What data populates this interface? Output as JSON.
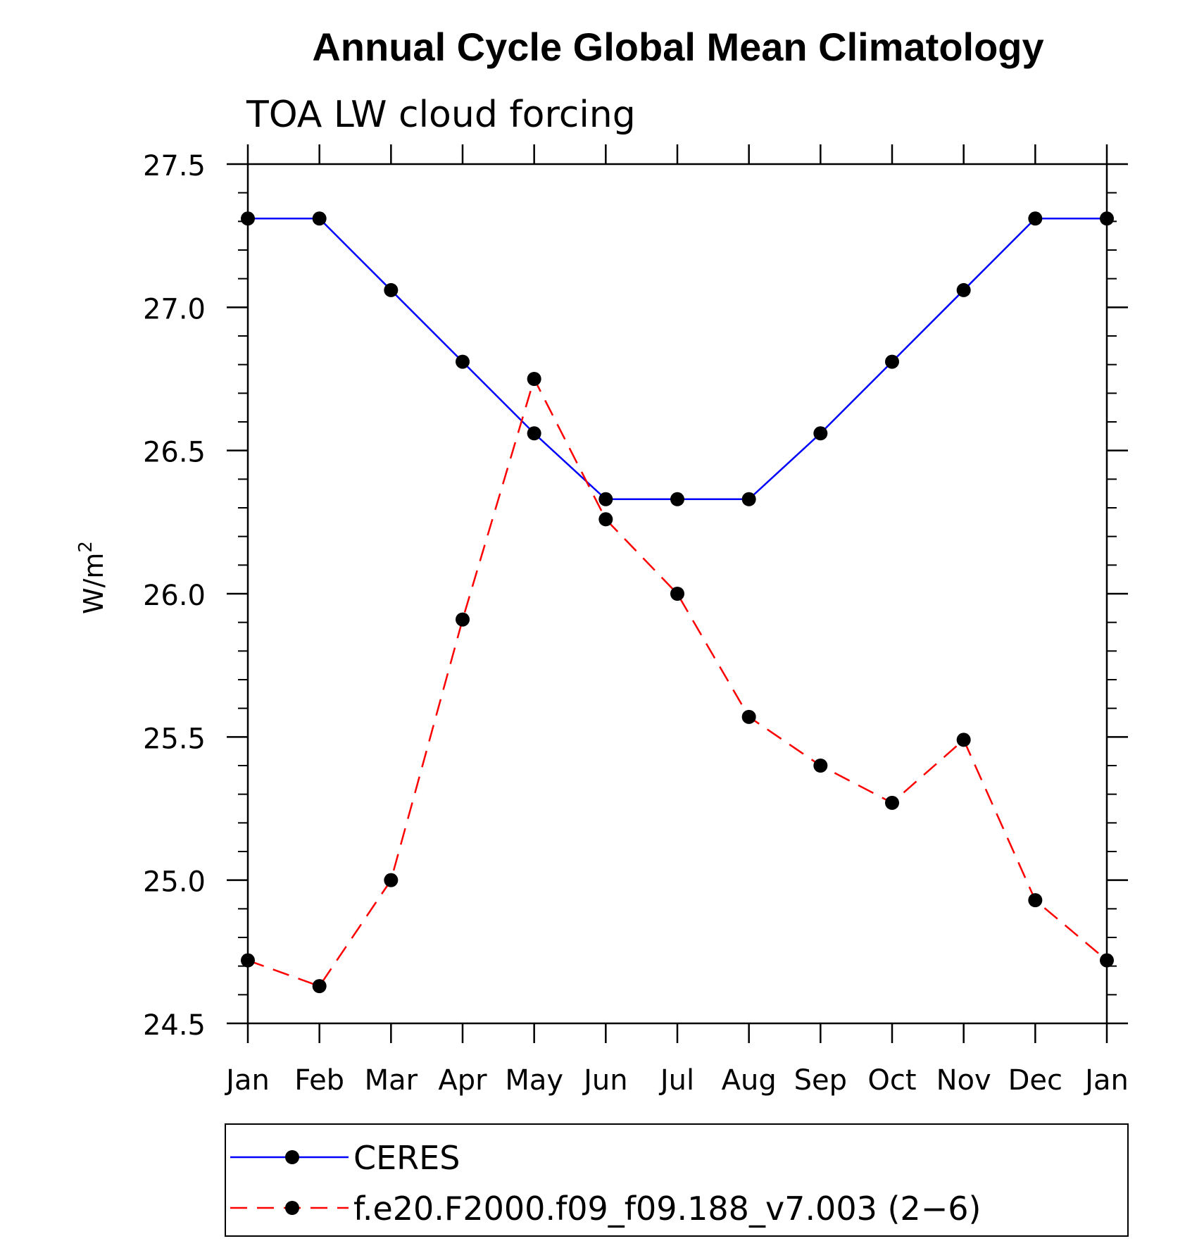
{
  "chart_data": {
    "type": "line",
    "title": "Annual Cycle Global Mean Climatology",
    "subtitle": "TOA LW cloud forcing",
    "ylabel": "W/m",
    "ylabel_sup": "2",
    "categories": [
      "Jan",
      "Feb",
      "Mar",
      "Apr",
      "May",
      "Jun",
      "Jul",
      "Aug",
      "Sep",
      "Oct",
      "Nov",
      "Dec",
      "Jan"
    ],
    "ylim": [
      24.5,
      27.5
    ],
    "yticks": [
      "24.5",
      "25.0",
      "25.5",
      "26.0",
      "26.5",
      "27.0",
      "27.5"
    ],
    "series": [
      {
        "name": "CERES",
        "color": "#0000ff",
        "style": "solid",
        "values": [
          27.31,
          27.31,
          27.06,
          26.81,
          26.56,
          26.33,
          26.33,
          26.33,
          26.56,
          26.81,
          27.06,
          27.31,
          27.31
        ]
      },
      {
        "name": "f.e20.F2000.f09_f09.188_v7.003 (2−6)",
        "color": "#ff0000",
        "style": "dashed",
        "values": [
          24.72,
          24.63,
          25.0,
          25.91,
          26.75,
          26.26,
          26.0,
          25.57,
          25.4,
          25.27,
          25.49,
          24.93,
          24.72
        ]
      }
    ],
    "grid": false,
    "legend_position": "bottom"
  }
}
